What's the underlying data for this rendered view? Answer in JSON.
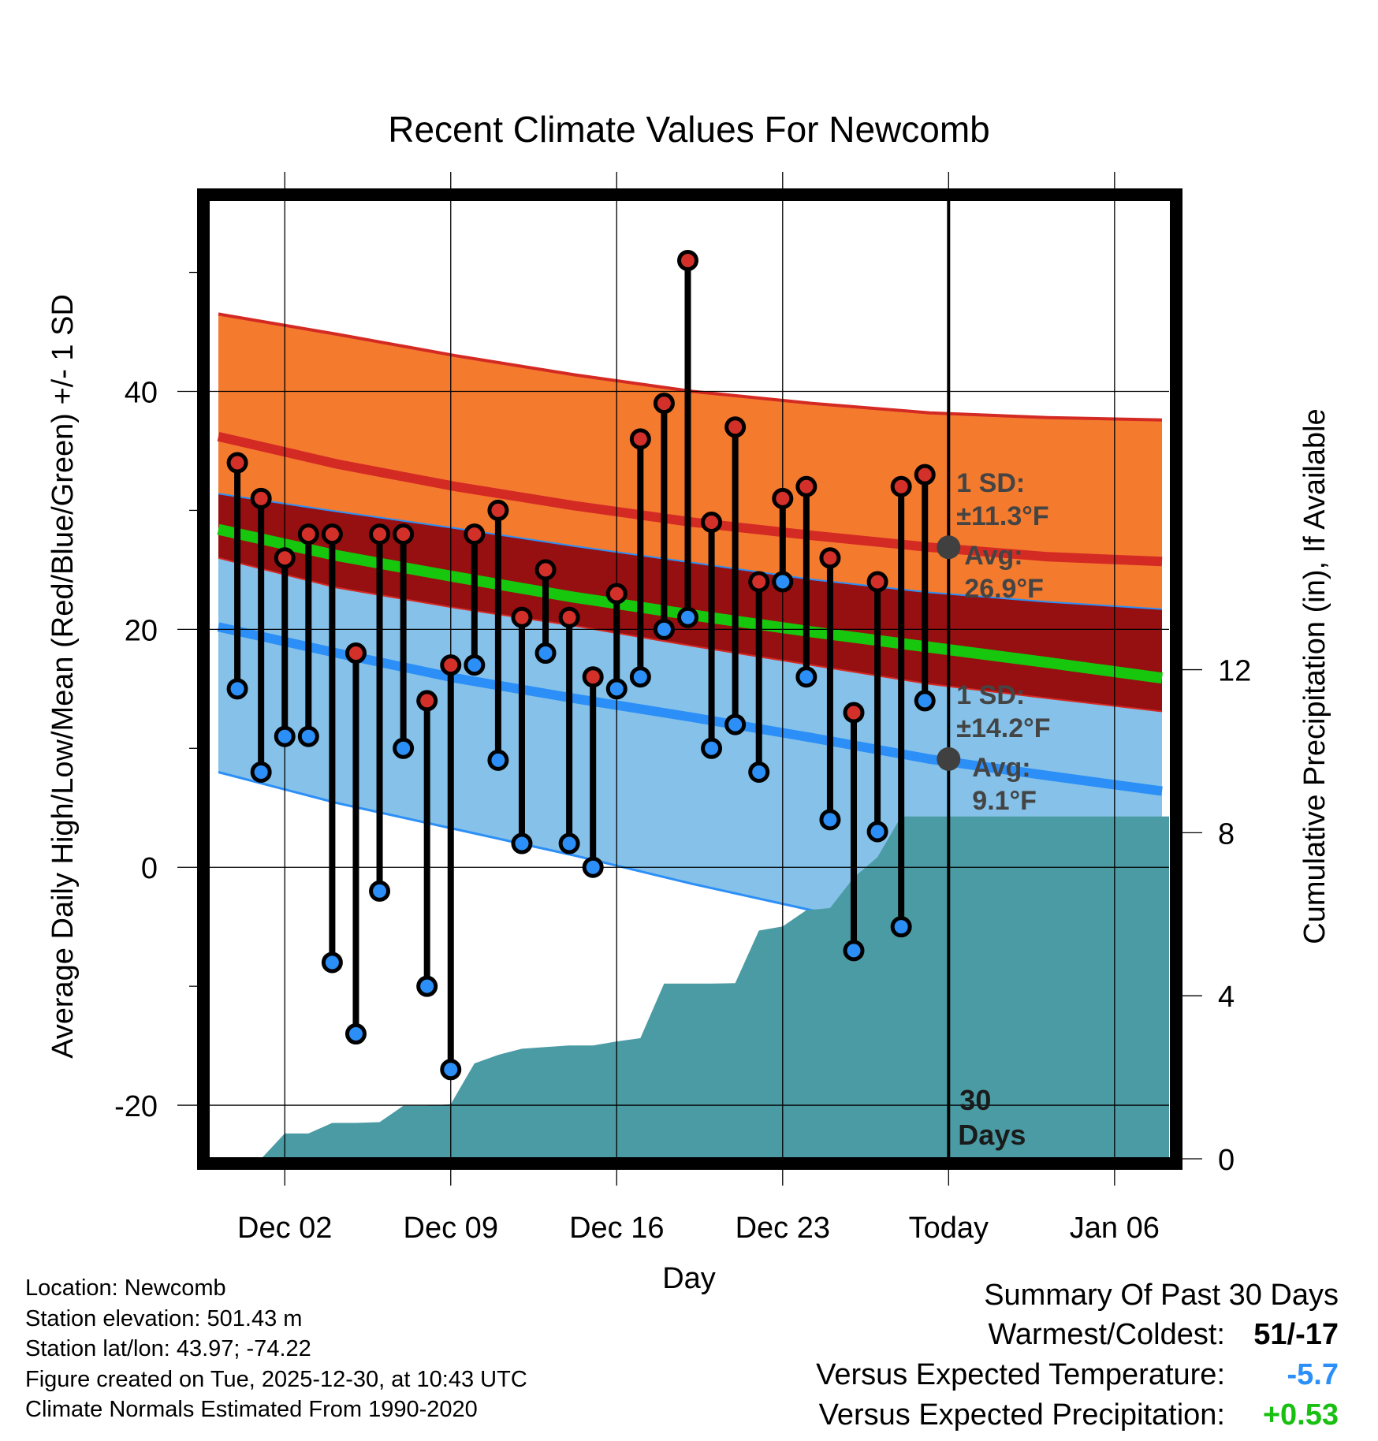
{
  "colors": {
    "background": "#ffffff",
    "upper_band": "#f47a2e",
    "upper_line": "#d42a24",
    "middle_band": "#960f11",
    "mean_line": "#16c70d",
    "lower_band": "#85c1e8",
    "lower_line": "#2b8ff7",
    "precip_fill": "#4a9ba4",
    "high_dot": "#d4302a",
    "low_dot": "#2b8ff7",
    "today_dot": "#404040",
    "annotation": "#444444",
    "cold": "#2b8ff7",
    "wet": "#18c011"
  },
  "chart_data": {
    "type": "line",
    "title": "Recent Climate Values For Newcomb",
    "xlabel": "Day",
    "ylabel": "Average Daily High/Low/Mean (Red/Blue/Green) +/- 1 SD",
    "y2label": "Cumulative Precipitation (in), If Available",
    "xlim": [
      -3.2,
      37.3
    ],
    "ylim": [
      -24.5,
      56
    ],
    "y2lim": [
      0,
      23.5
    ],
    "x_ticks": [
      {
        "x": 0,
        "label": "Dec 02"
      },
      {
        "x": 7,
        "label": "Dec 09"
      },
      {
        "x": 14,
        "label": "Dec 16"
      },
      {
        "x": 21,
        "label": "Dec 23"
      },
      {
        "x": 28,
        "label": "Today"
      },
      {
        "x": 35,
        "label": "Jan 06"
      }
    ],
    "y_ticks": [
      {
        "v": -20,
        "label": "-20"
      },
      {
        "v": 0,
        "label": "0"
      },
      {
        "v": 20,
        "label": "20"
      },
      {
        "v": 40,
        "label": "40"
      }
    ],
    "y2_ticks": [
      {
        "v": 0,
        "label": "0"
      },
      {
        "v": 4,
        "label": "4"
      },
      {
        "v": 8,
        "label": "8"
      },
      {
        "v": 12,
        "label": "12"
      }
    ],
    "normals_x": [
      -2.8,
      2.2,
      7.2,
      12.2,
      17.2,
      22.2,
      27.2,
      32.2,
      37.0
    ],
    "normals": {
      "high_plus_sd": [
        46.5,
        44.8,
        43.0,
        41.4,
        40.0,
        39.0,
        38.2,
        37.8,
        37.6
      ],
      "high_mean": [
        36.2,
        33.9,
        32.0,
        30.4,
        29.0,
        27.9,
        26.9,
        26.1,
        25.7
      ],
      "high_minus_sd": [
        31.4,
        29.9,
        28.5,
        27.0,
        25.6,
        24.2,
        23.1,
        22.3,
        21.7
      ],
      "mean": [
        28.4,
        26.2,
        24.4,
        22.7,
        21.2,
        19.8,
        18.5,
        17.2,
        15.9
      ],
      "low_plus_sd": [
        26.0,
        23.5,
        21.8,
        20.3,
        18.6,
        17.0,
        15.4,
        14.2,
        13.1
      ],
      "low_mean": [
        20.2,
        18.0,
        15.9,
        14.2,
        12.6,
        10.9,
        9.1,
        7.7,
        6.4
      ],
      "low_minus_sd": [
        8.0,
        5.4,
        3.2,
        1.0,
        -1.4,
        -3.6,
        -5.9,
        -7.8,
        -9.6
      ]
    },
    "days_x": [
      -2,
      -1,
      0,
      1,
      2,
      3,
      4,
      5,
      6,
      7,
      8,
      9,
      10,
      11,
      12,
      13,
      14,
      15,
      16,
      17,
      18,
      19,
      20,
      21,
      22,
      23,
      24,
      25,
      26,
      27
    ],
    "series": [
      {
        "name": "High",
        "values": [
          34,
          31,
          26,
          28,
          28,
          18,
          28,
          28,
          14,
          17,
          28,
          30,
          21,
          25,
          21,
          16,
          23,
          36,
          39,
          51,
          29,
          37,
          24,
          31,
          32,
          26,
          13,
          24,
          32,
          33
        ]
      },
      {
        "name": "Low",
        "values": [
          15,
          8,
          11,
          11,
          -8,
          -14,
          -2,
          10,
          -10,
          -17,
          17,
          9,
          2,
          18,
          2,
          0,
          15,
          16,
          20,
          21,
          10,
          12,
          8,
          24,
          16,
          4,
          -7,
          3,
          -5,
          14
        ]
      },
      {
        "name": "Cumulative Precipitation",
        "values": [
          0,
          0,
          0.62,
          0.62,
          0.88,
          0.88,
          0.9,
          1.3,
          1.3,
          1.34,
          2.34,
          2.55,
          2.7,
          2.74,
          2.78,
          2.78,
          2.88,
          2.96,
          4.3,
          4.3,
          4.3,
          4.31,
          5.6,
          5.7,
          6.1,
          6.15,
          6.9,
          7.4,
          8.4,
          8.4
        ]
      }
    ],
    "precip_after_today": 8.4,
    "today_x": 28,
    "annotations": {
      "upper": {
        "sd_label": "1 SD:",
        "sd_value": "±11.3°F",
        "avg_label": "Avg:",
        "avg_value": "26.9°F",
        "avg": 26.9
      },
      "lower": {
        "sd_label": "1 SD:",
        "sd_value": "±14.2°F",
        "avg_label": "Avg:",
        "avg_value": "9.1°F",
        "avg": 9.1
      },
      "window_number": "30",
      "window_unit": "Days"
    }
  },
  "info": {
    "location": "Location: Newcomb",
    "elevation": "Station elevation: 501.43 m",
    "latlon": "Station lat/lon: 43.97; -74.22",
    "created": "Figure created on Tue, 2025-12-30, at 10:43 UTC",
    "normals": "Climate Normals Estimated From 1990-2020"
  },
  "summary": {
    "title": "Summary Of Past 30 Days",
    "warmest_label": "Warmest/Coldest:",
    "warmest_value": "51/-17",
    "temp_label": "Versus Expected Temperature:",
    "temp_value": "-5.7",
    "precip_label": "Versus Expected Precipitation:",
    "precip_value": "+0.53"
  }
}
